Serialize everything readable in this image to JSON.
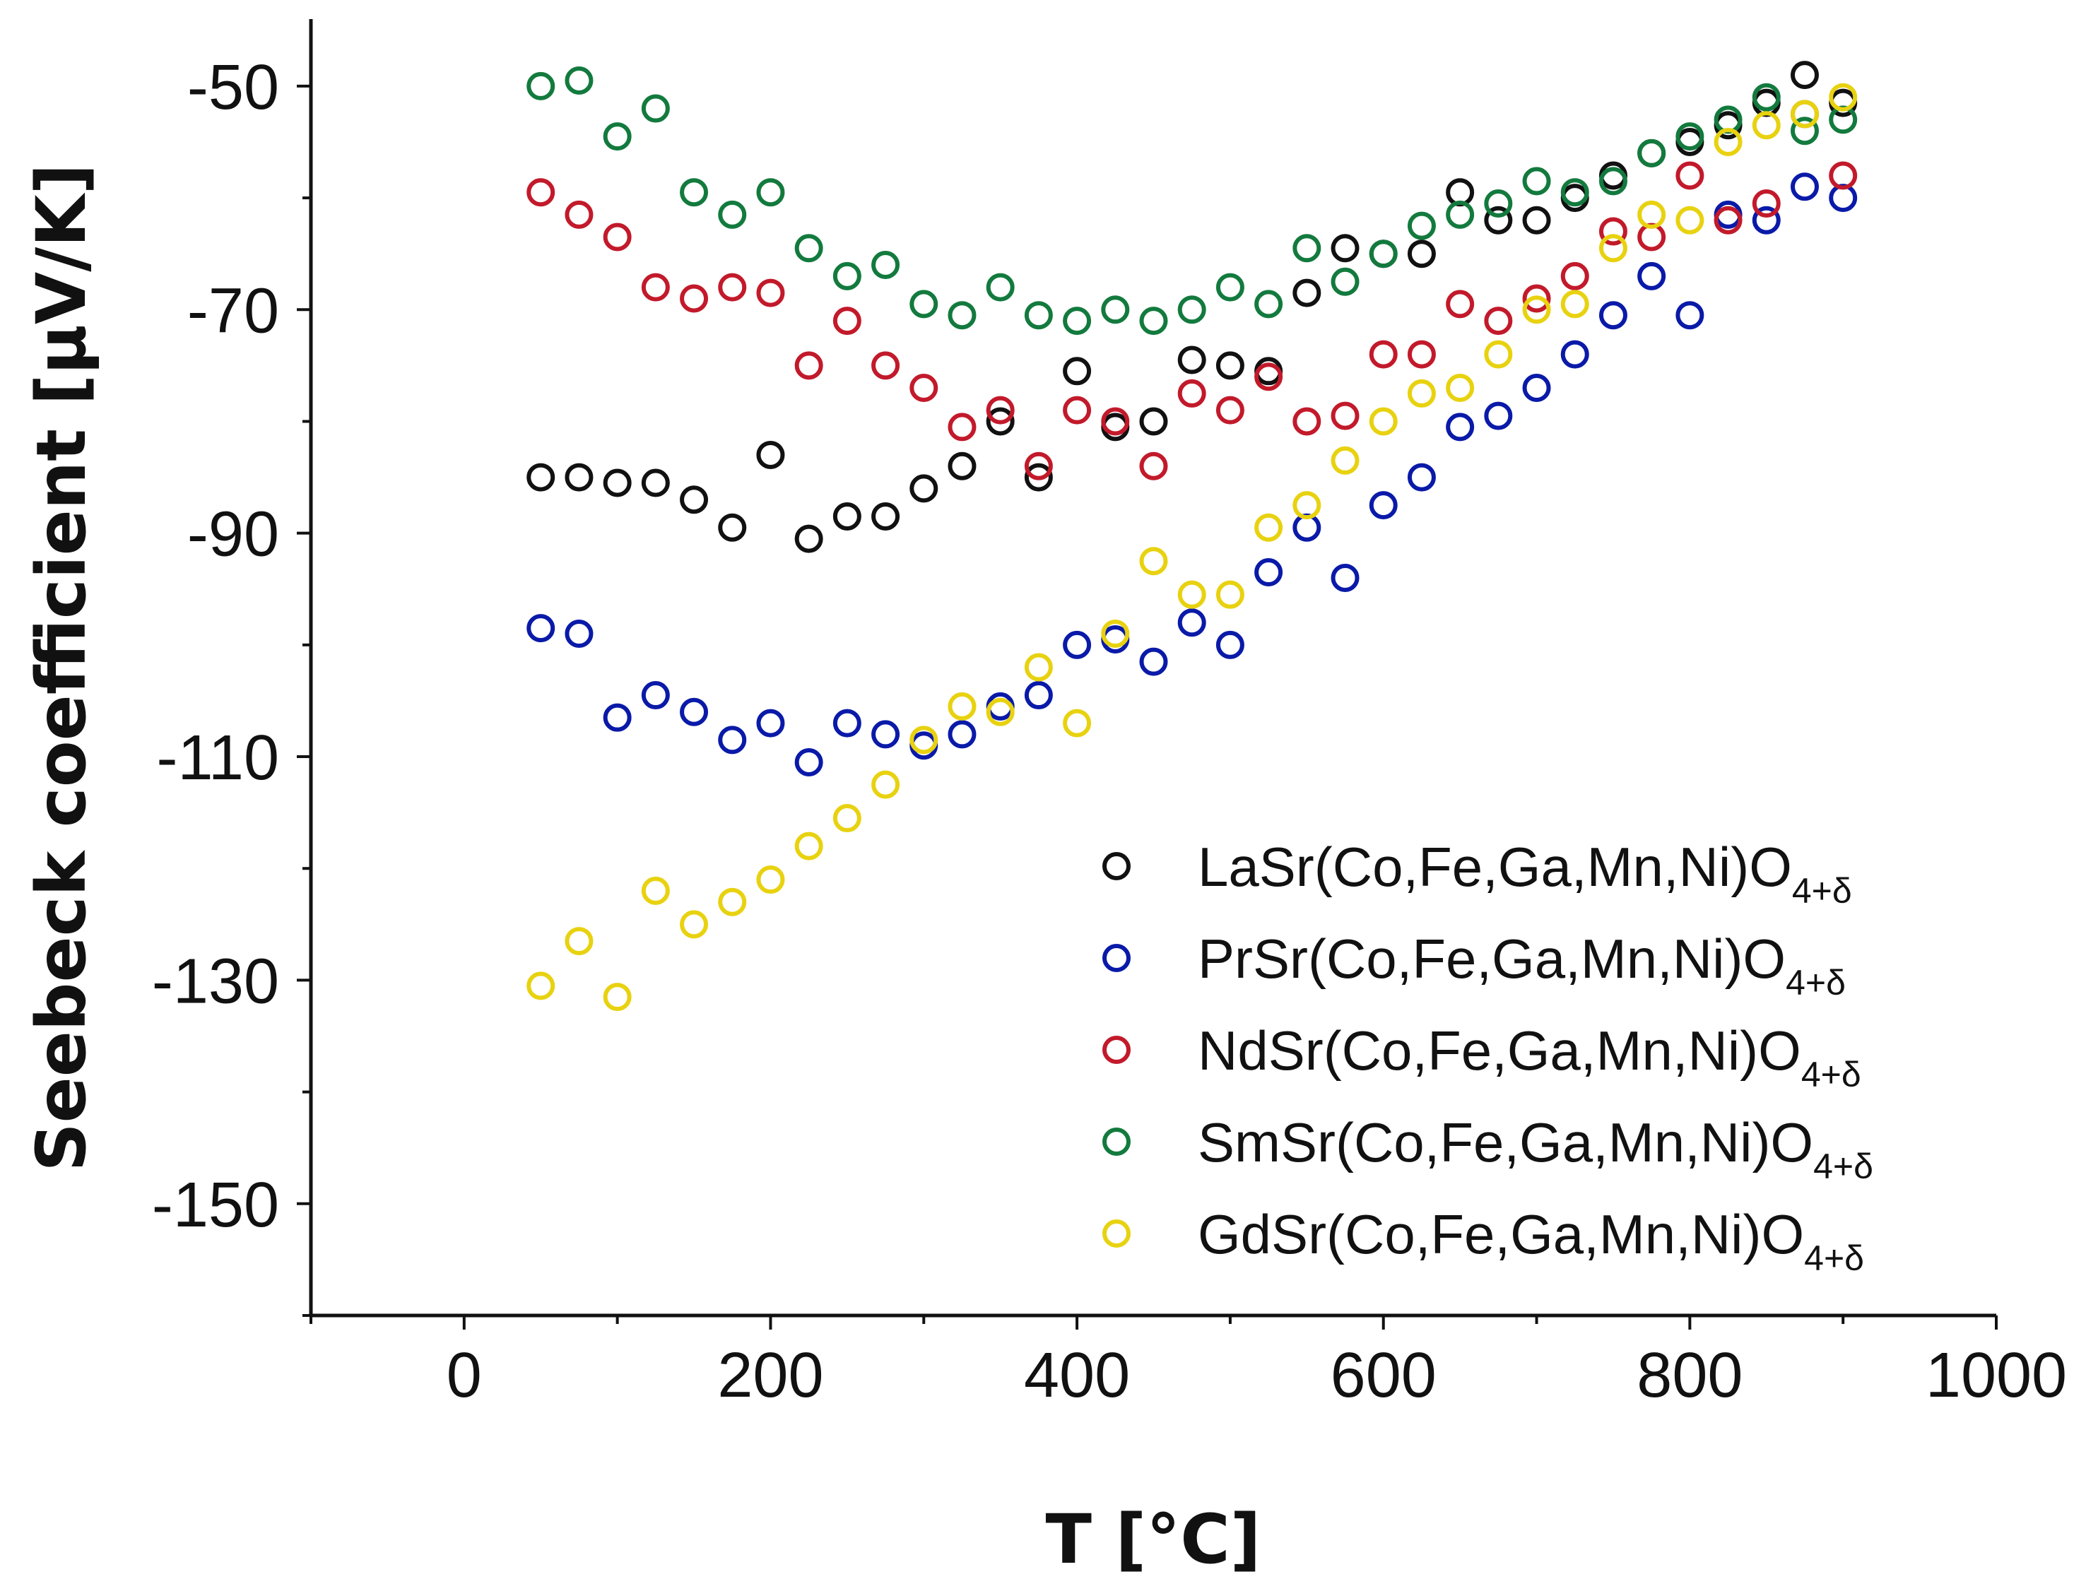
{
  "chart_data": {
    "type": "scatter",
    "title": "",
    "xlabel": "T [°C]",
    "ylabel": "Seebeck coefficient [μV/K]",
    "xlim": [
      -100,
      1000
    ],
    "ylim": [
      -160,
      -44
    ],
    "xticks": [
      0,
      200,
      400,
      600,
      800,
      1000
    ],
    "yticks": [
      -50,
      -70,
      -90,
      -110,
      -130,
      -150
    ],
    "grid": false,
    "legend_position": "bottom-right",
    "series": [
      {
        "name": "LaSr(Co,Fe,Ga,Mn,Ni)O",
        "subscript": "4+δ",
        "color": "#111111",
        "x": [
          50,
          75,
          100,
          125,
          150,
          175,
          200,
          225,
          250,
          275,
          300,
          325,
          350,
          375,
          400,
          425,
          450,
          475,
          500,
          525,
          550,
          575,
          600,
          625,
          650,
          675,
          700,
          725,
          750,
          775,
          800,
          825,
          850,
          875,
          900
        ],
        "y": [
          -85,
          -85,
          -85.5,
          -85.5,
          -87,
          -89.5,
          -83,
          -90.5,
          -88.5,
          -88.5,
          -86,
          -84,
          -80,
          -85,
          -75.5,
          -80.5,
          -80,
          -74.5,
          -75,
          -75.5,
          -68.5,
          -64.5,
          -65,
          -65,
          -59.5,
          -62,
          -62,
          -60,
          -58,
          -56,
          -55,
          -53.5,
          -51.5,
          -49,
          -51.5
        ]
      },
      {
        "name": "PrSr(Co,Fe,Ga,Mn,Ni)O",
        "subscript": "4+δ",
        "color": "#0a1aa8",
        "x": [
          50,
          75,
          100,
          125,
          150,
          175,
          200,
          225,
          250,
          275,
          300,
          325,
          350,
          375,
          400,
          425,
          450,
          475,
          500,
          525,
          550,
          575,
          600,
          625,
          650,
          675,
          700,
          725,
          750,
          775,
          800,
          825,
          850,
          875,
          900
        ],
        "y": [
          -98.5,
          -99,
          -106.5,
          -104.5,
          -106,
          -108.5,
          -107,
          -110.5,
          -107,
          -108,
          -109,
          -108,
          -105.5,
          -104.5,
          -100,
          -99.5,
          -101.5,
          -98,
          -100,
          -93.5,
          -89.5,
          -94,
          -87.5,
          -85,
          -80.5,
          -79.5,
          -77,
          -74,
          -70.5,
          -67,
          -70.5,
          -61.5,
          -62,
          -59,
          -60
        ]
      },
      {
        "name": "NdSr(Co,Fe,Ga,Mn,Ni)O",
        "subscript": "4+δ",
        "color": "#c21a2b",
        "x": [
          50,
          75,
          100,
          125,
          150,
          175,
          200,
          225,
          250,
          275,
          300,
          325,
          350,
          375,
          400,
          425,
          450,
          475,
          500,
          525,
          550,
          575,
          600,
          625,
          650,
          675,
          700,
          725,
          750,
          775,
          800,
          825,
          850,
          875,
          900
        ],
        "y": [
          -59.5,
          -61.5,
          -63.5,
          -68,
          -69,
          -68,
          -68.5,
          -75,
          -71,
          -75,
          -77,
          -80.5,
          -79,
          -84,
          -79,
          -80,
          -84,
          -77.5,
          -79,
          -76,
          -80,
          -79.5,
          -74,
          -74,
          -69.5,
          -71,
          -69,
          -67,
          -63,
          -63.5,
          -58,
          -62,
          -60.5,
          -52.5,
          -58
        ]
      },
      {
        "name": "SmSr(Co,Fe,Ga,Mn,Ni)O",
        "subscript": "4+δ",
        "color": "#137a3e",
        "x": [
          50,
          75,
          100,
          125,
          150,
          175,
          200,
          225,
          250,
          275,
          300,
          325,
          350,
          375,
          400,
          425,
          450,
          475,
          500,
          525,
          550,
          575,
          600,
          625,
          650,
          675,
          700,
          725,
          750,
          775,
          800,
          825,
          850,
          875,
          900
        ],
        "y": [
          -50,
          -49.5,
          -54.5,
          -52,
          -59.5,
          -61.5,
          -59.5,
          -64.5,
          -67,
          -66,
          -69.5,
          -70.5,
          -68,
          -70.5,
          -71,
          -70,
          -71,
          -70,
          -68,
          -69.5,
          -64.5,
          -67.5,
          -65,
          -62.5,
          -61.5,
          -60.5,
          -58.5,
          -59.5,
          -58.5,
          -56,
          -54.5,
          -53,
          -51,
          -54,
          -53
        ]
      },
      {
        "name": "GdSr(Co,Fe,Ga,Mn,Ni)O",
        "subscript": "4+δ",
        "color": "#e8d210",
        "x": [
          50,
          75,
          100,
          125,
          150,
          175,
          200,
          225,
          250,
          275,
          300,
          325,
          350,
          375,
          400,
          425,
          450,
          475,
          500,
          525,
          550,
          575,
          600,
          625,
          650,
          675,
          700,
          725,
          750,
          775,
          800,
          825,
          850,
          875,
          900
        ],
        "y": [
          -130.5,
          -126.5,
          -131.5,
          -122,
          -125,
          -123,
          -121,
          -118,
          -115.5,
          -112.5,
          -108.5,
          -105.5,
          -106,
          -102,
          -107,
          -99,
          -92.5,
          -95.5,
          -95.5,
          -89.5,
          -87.5,
          -83.5,
          -80,
          -77.5,
          -77,
          -74,
          -70,
          -69.5,
          -64.5,
          -61.5,
          -62,
          -55,
          -53.5,
          -52.5,
          -51
        ]
      }
    ]
  }
}
